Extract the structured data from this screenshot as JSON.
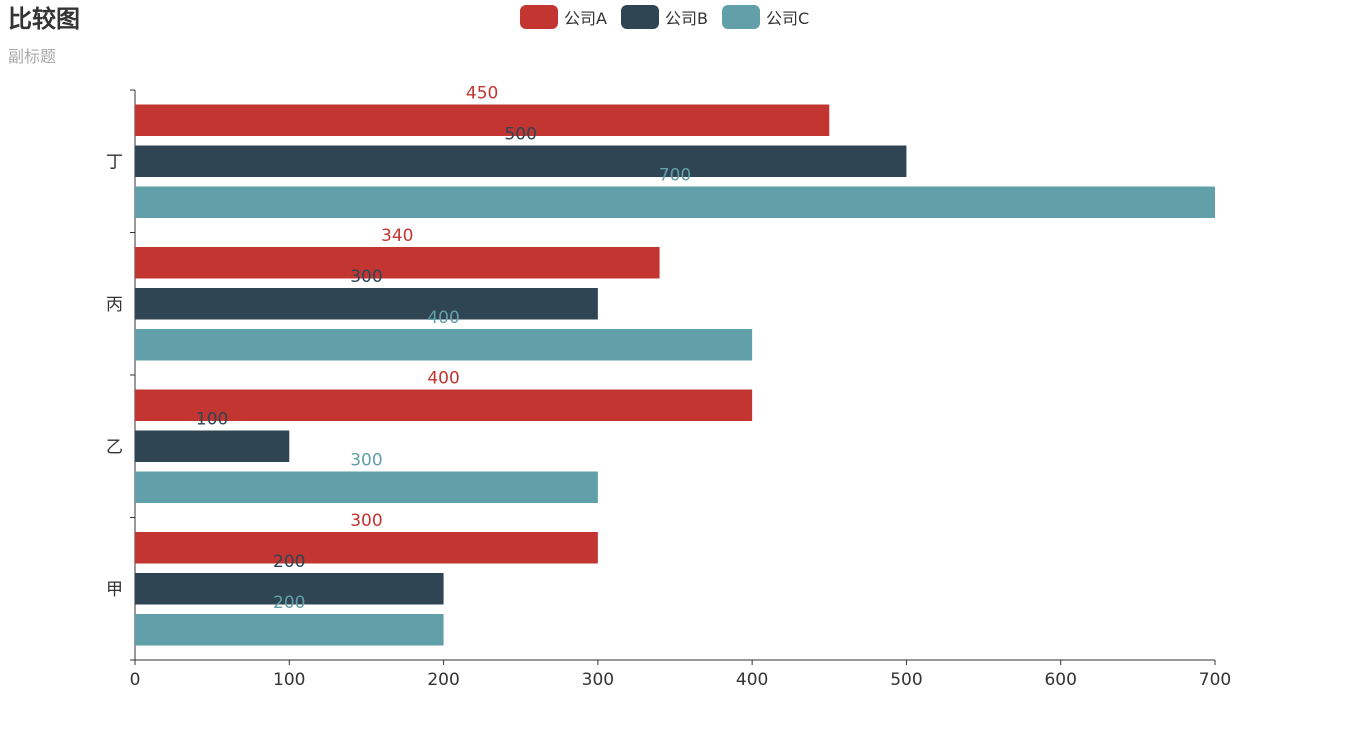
{
  "title": "比较图",
  "subtitle": "副标题",
  "chart_data": {
    "type": "bar",
    "orientation": "horizontal",
    "title": "比较图",
    "subtitle": "副标题",
    "categories": [
      "甲",
      "乙",
      "丙",
      "丁"
    ],
    "series": [
      {
        "name": "公司A",
        "color": "#c23531",
        "values": [
          300,
          400,
          340,
          450
        ]
      },
      {
        "name": "公司B",
        "color": "#2f4554",
        "values": [
          200,
          100,
          300,
          500
        ]
      },
      {
        "name": "公司C",
        "color": "#61a0a8",
        "values": [
          200,
          300,
          400,
          700
        ]
      }
    ],
    "xlim": [
      0,
      700
    ],
    "xticks": [
      "0",
      "100",
      "200",
      "300",
      "400",
      "500",
      "600",
      "700"
    ],
    "legend_position": "top-center",
    "grid": false,
    "data_labels": true
  }
}
